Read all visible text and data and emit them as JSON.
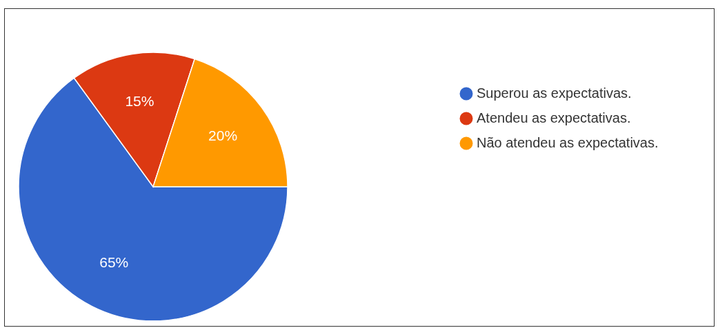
{
  "chart_data": {
    "type": "pie",
    "categories": [
      "Superou as expectativas.",
      "Atendeu as expectativas.",
      "Não atendeu as expectativas."
    ],
    "values": [
      65,
      15,
      20
    ],
    "colors": [
      "#3366cc",
      "#dc3912",
      "#ff9900"
    ],
    "value_labels": [
      "65%",
      "15%",
      "20%"
    ],
    "legend": "top right"
  }
}
